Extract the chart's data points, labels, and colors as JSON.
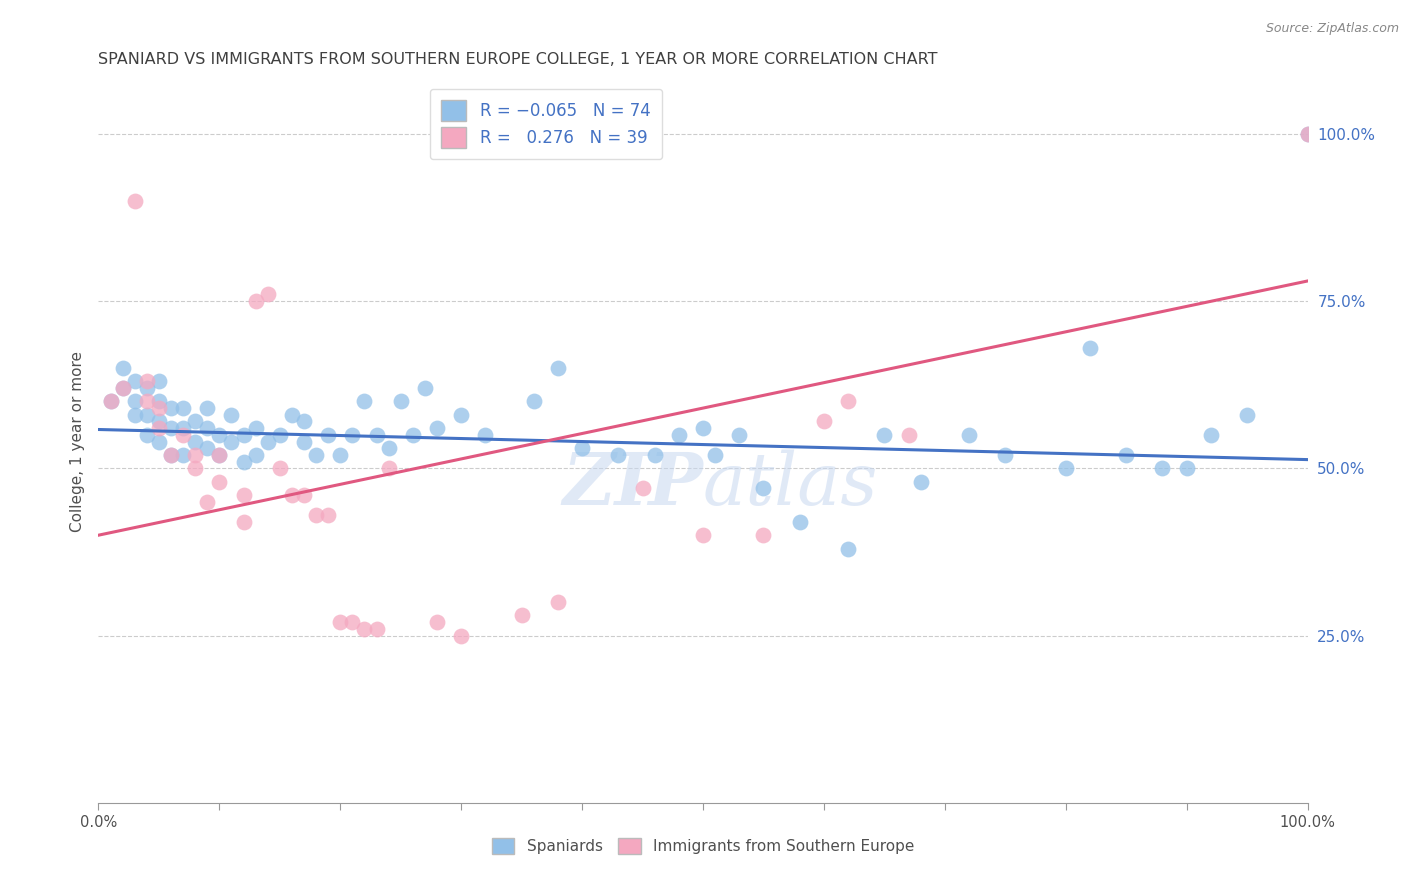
{
  "title": "SPANIARD VS IMMIGRANTS FROM SOUTHERN EUROPE COLLEGE, 1 YEAR OR MORE CORRELATION CHART",
  "source": "Source: ZipAtlas.com",
  "ylabel": "College, 1 year or more",
  "ytick_labels": [
    "25.0%",
    "50.0%",
    "75.0%",
    "100.0%"
  ],
  "ytick_values": [
    0.25,
    0.5,
    0.75,
    1.0
  ],
  "xlim": [
    0.0,
    1.0
  ],
  "ylim": [
    0.0,
    1.08
  ],
  "blue_color": "#92C0E8",
  "pink_color": "#F4A8C0",
  "blue_line_color": "#4472C4",
  "pink_line_color": "#E05880",
  "title_color": "#404040",
  "axis_label_color": "#505050",
  "watermark_color": "#C8D8F0",
  "blue_scatter_x": [
    0.01,
    0.02,
    0.02,
    0.03,
    0.03,
    0.03,
    0.04,
    0.04,
    0.04,
    0.05,
    0.05,
    0.05,
    0.05,
    0.06,
    0.06,
    0.06,
    0.07,
    0.07,
    0.07,
    0.08,
    0.08,
    0.09,
    0.09,
    0.09,
    0.1,
    0.1,
    0.11,
    0.11,
    0.12,
    0.12,
    0.13,
    0.13,
    0.14,
    0.15,
    0.16,
    0.17,
    0.17,
    0.18,
    0.19,
    0.2,
    0.21,
    0.22,
    0.23,
    0.24,
    0.25,
    0.26,
    0.27,
    0.28,
    0.3,
    0.32,
    0.36,
    0.38,
    0.4,
    0.43,
    0.46,
    0.48,
    0.5,
    0.51,
    0.53,
    0.55,
    0.58,
    0.62,
    0.65,
    0.68,
    0.72,
    0.75,
    0.8,
    0.82,
    0.85,
    0.88,
    0.9,
    0.92,
    0.95,
    1.0
  ],
  "blue_scatter_y": [
    0.6,
    0.62,
    0.65,
    0.58,
    0.6,
    0.63,
    0.55,
    0.58,
    0.62,
    0.54,
    0.57,
    0.6,
    0.63,
    0.52,
    0.56,
    0.59,
    0.52,
    0.56,
    0.59,
    0.54,
    0.57,
    0.53,
    0.56,
    0.59,
    0.52,
    0.55,
    0.54,
    0.58,
    0.51,
    0.55,
    0.52,
    0.56,
    0.54,
    0.55,
    0.58,
    0.54,
    0.57,
    0.52,
    0.55,
    0.52,
    0.55,
    0.6,
    0.55,
    0.53,
    0.6,
    0.55,
    0.62,
    0.56,
    0.58,
    0.55,
    0.6,
    0.65,
    0.53,
    0.52,
    0.52,
    0.55,
    0.56,
    0.52,
    0.55,
    0.47,
    0.42,
    0.38,
    0.55,
    0.48,
    0.55,
    0.52,
    0.5,
    0.68,
    0.52,
    0.5,
    0.5,
    0.55,
    0.58,
    1.0
  ],
  "pink_scatter_x": [
    0.01,
    0.02,
    0.03,
    0.04,
    0.04,
    0.05,
    0.05,
    0.06,
    0.07,
    0.08,
    0.08,
    0.09,
    0.1,
    0.1,
    0.12,
    0.12,
    0.13,
    0.14,
    0.15,
    0.16,
    0.17,
    0.18,
    0.19,
    0.2,
    0.21,
    0.22,
    0.23,
    0.24,
    0.28,
    0.3,
    0.35,
    0.38,
    0.45,
    0.5,
    0.55,
    0.6,
    0.62,
    0.67,
    1.0
  ],
  "pink_scatter_y": [
    0.6,
    0.62,
    0.9,
    0.6,
    0.63,
    0.56,
    0.59,
    0.52,
    0.55,
    0.5,
    0.52,
    0.45,
    0.48,
    0.52,
    0.42,
    0.46,
    0.75,
    0.76,
    0.5,
    0.46,
    0.46,
    0.43,
    0.43,
    0.27,
    0.27,
    0.26,
    0.26,
    0.5,
    0.27,
    0.25,
    0.28,
    0.3,
    0.47,
    0.4,
    0.4,
    0.57,
    0.6,
    0.55,
    1.0
  ]
}
